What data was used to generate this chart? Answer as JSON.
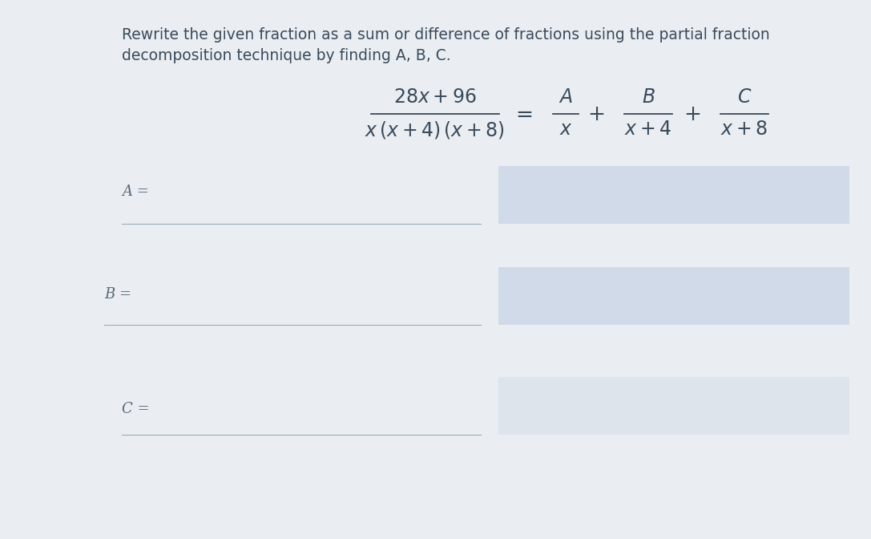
{
  "bg_color": "#e8ecf0",
  "box_color": "#d0dae8",
  "title_line1": "Rewrite the given fraction as a sum or difference of fractions using the partial fraction",
  "title_line2": "decomposition technique by finding A, B, C.",
  "label_A": "A =",
  "label_B": "B =",
  "label_C": "C =",
  "title_fontsize": 13.5,
  "label_fontsize": 13,
  "math_fontsize": 17,
  "text_color": "#3a4a5a",
  "label_color": "#5a6a7a",
  "line_color": "#9aaaba"
}
